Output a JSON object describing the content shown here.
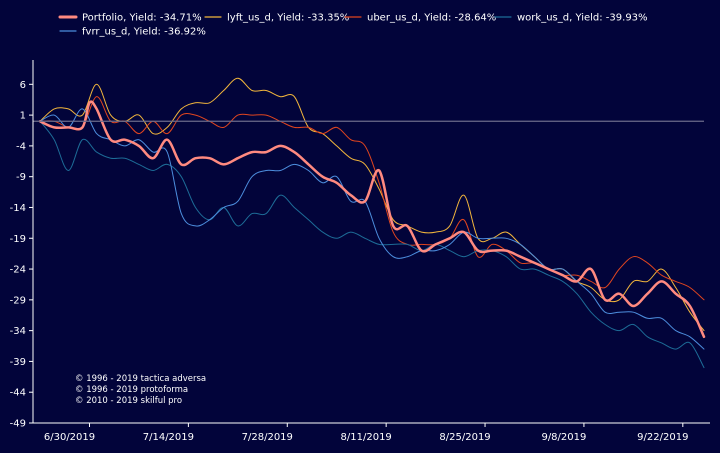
{
  "chart_data": {
    "type": "line",
    "title": "",
    "xlabel": "",
    "ylabel": "",
    "ylim": [
      -49,
      8
    ],
    "y_ticks": [
      6,
      1,
      -4,
      -9,
      -14,
      -19,
      -24,
      -29,
      -34,
      -39,
      -44,
      -49
    ],
    "x_ticks": [
      "6/30/2019",
      "7/14/2019",
      "7/28/2019",
      "8/11/2019",
      "8/25/2019",
      "9/8/2019",
      "9/22/2019"
    ],
    "x_tick_index": [
      7,
      21,
      35,
      49,
      63,
      77,
      91
    ],
    "x_range_index": [
      -1,
      94
    ],
    "baseline": 0,
    "grid": false,
    "legend_position": "top-left",
    "colors": {
      "background": "#02043a",
      "axis": "#ffffff",
      "baseline": "#6b6b8a"
    },
    "series": [
      {
        "name": "lyft_us_d",
        "legend": "lyft_us_d, Yield: -33.35%",
        "color": "#f2b63c",
        "width": 1,
        "points": [
          [
            0,
            0
          ],
          [
            2,
            2
          ],
          [
            4,
            2
          ],
          [
            6,
            1
          ],
          [
            8,
            6
          ],
          [
            10,
            1
          ],
          [
            12,
            0
          ],
          [
            14,
            1
          ],
          [
            16,
            -2
          ],
          [
            18,
            -1
          ],
          [
            20,
            2
          ],
          [
            22,
            3
          ],
          [
            24,
            3
          ],
          [
            26,
            5
          ],
          [
            28,
            7
          ],
          [
            30,
            5
          ],
          [
            32,
            5
          ],
          [
            34,
            4
          ],
          [
            36,
            4
          ],
          [
            38,
            -1
          ],
          [
            40,
            -2
          ],
          [
            42,
            -4
          ],
          [
            44,
            -6
          ],
          [
            46,
            -7
          ],
          [
            48,
            -11
          ],
          [
            50,
            -16
          ],
          [
            52,
            -17
          ],
          [
            54,
            -18
          ],
          [
            56,
            -18
          ],
          [
            58,
            -17
          ],
          [
            60,
            -12
          ],
          [
            62,
            -19
          ],
          [
            64,
            -19
          ],
          [
            66,
            -18
          ],
          [
            68,
            -20
          ],
          [
            70,
            -22
          ],
          [
            72,
            -24
          ],
          [
            74,
            -24
          ],
          [
            76,
            -26
          ],
          [
            78,
            -27
          ],
          [
            80,
            -29
          ],
          [
            82,
            -29
          ],
          [
            84,
            -26
          ],
          [
            86,
            -26
          ],
          [
            88,
            -24
          ],
          [
            90,
            -27
          ],
          [
            92,
            -31
          ],
          [
            94,
            -34
          ]
        ]
      },
      {
        "name": "uber_us_d",
        "legend": "uber_us_d, Yield: -28.64%",
        "color": "#e0451f",
        "width": 1,
        "points": [
          [
            0,
            0
          ],
          [
            2,
            0
          ],
          [
            4,
            -1
          ],
          [
            6,
            -1
          ],
          [
            8,
            4
          ],
          [
            10,
            0
          ],
          [
            12,
            0
          ],
          [
            14,
            -2
          ],
          [
            16,
            0
          ],
          [
            18,
            -2
          ],
          [
            20,
            1
          ],
          [
            22,
            1
          ],
          [
            24,
            0
          ],
          [
            26,
            -1
          ],
          [
            28,
            1
          ],
          [
            30,
            1
          ],
          [
            32,
            1
          ],
          [
            34,
            0
          ],
          [
            36,
            -1
          ],
          [
            38,
            -1
          ],
          [
            40,
            -2
          ],
          [
            42,
            -1
          ],
          [
            44,
            -3
          ],
          [
            46,
            -4
          ],
          [
            48,
            -10
          ],
          [
            50,
            -18
          ],
          [
            52,
            -20
          ],
          [
            54,
            -20
          ],
          [
            56,
            -20
          ],
          [
            58,
            -19
          ],
          [
            60,
            -16
          ],
          [
            62,
            -22
          ],
          [
            64,
            -20
          ],
          [
            66,
            -21
          ],
          [
            68,
            -23
          ],
          [
            70,
            -23
          ],
          [
            72,
            -24
          ],
          [
            74,
            -25
          ],
          [
            76,
            -25
          ],
          [
            78,
            -26
          ],
          [
            80,
            -27
          ],
          [
            82,
            -24
          ],
          [
            84,
            -22
          ],
          [
            86,
            -23
          ],
          [
            88,
            -25
          ],
          [
            90,
            -26
          ],
          [
            92,
            -27
          ],
          [
            94,
            -29
          ]
        ]
      },
      {
        "name": "work_us_d",
        "legend": "work_us_d, Yield: -39.93%",
        "color": "#1d6c97",
        "width": 1,
        "points": [
          [
            0,
            0
          ],
          [
            2,
            -3
          ],
          [
            4,
            -8
          ],
          [
            6,
            -3
          ],
          [
            8,
            -5
          ],
          [
            10,
            -6
          ],
          [
            12,
            -6
          ],
          [
            14,
            -7
          ],
          [
            16,
            -8
          ],
          [
            18,
            -7
          ],
          [
            20,
            -9
          ],
          [
            22,
            -14
          ],
          [
            24,
            -16
          ],
          [
            26,
            -14
          ],
          [
            28,
            -17
          ],
          [
            30,
            -15
          ],
          [
            32,
            -15
          ],
          [
            34,
            -12
          ],
          [
            36,
            -14
          ],
          [
            38,
            -16
          ],
          [
            40,
            -18
          ],
          [
            42,
            -19
          ],
          [
            44,
            -18
          ],
          [
            46,
            -19
          ],
          [
            48,
            -20
          ],
          [
            50,
            -20
          ],
          [
            52,
            -20
          ],
          [
            54,
            -21
          ],
          [
            56,
            -20
          ],
          [
            58,
            -21
          ],
          [
            60,
            -22
          ],
          [
            62,
            -21
          ],
          [
            64,
            -21
          ],
          [
            66,
            -22
          ],
          [
            68,
            -24
          ],
          [
            70,
            -24
          ],
          [
            72,
            -25
          ],
          [
            74,
            -26
          ],
          [
            76,
            -28
          ],
          [
            78,
            -31
          ],
          [
            80,
            -33
          ],
          [
            82,
            -34
          ],
          [
            84,
            -33
          ],
          [
            86,
            -35
          ],
          [
            88,
            -36
          ],
          [
            90,
            -37
          ],
          [
            92,
            -36
          ],
          [
            94,
            -40
          ]
        ]
      },
      {
        "name": "fvrr_us_d",
        "legend": "fvrr_us_d, Yield: -36.92%",
        "color": "#4d8ede",
        "width": 1,
        "points": [
          [
            0,
            0
          ],
          [
            2,
            1
          ],
          [
            4,
            -1
          ],
          [
            6,
            2
          ],
          [
            8,
            -2
          ],
          [
            10,
            -3
          ],
          [
            12,
            -4
          ],
          [
            14,
            -3
          ],
          [
            16,
            -5
          ],
          [
            18,
            -5
          ],
          [
            20,
            -15
          ],
          [
            22,
            -17
          ],
          [
            24,
            -16
          ],
          [
            26,
            -14
          ],
          [
            28,
            -13
          ],
          [
            30,
            -9
          ],
          [
            32,
            -8
          ],
          [
            34,
            -8
          ],
          [
            36,
            -7
          ],
          [
            38,
            -8
          ],
          [
            40,
            -10
          ],
          [
            42,
            -9
          ],
          [
            44,
            -13
          ],
          [
            46,
            -13
          ],
          [
            48,
            -19
          ],
          [
            50,
            -22
          ],
          [
            52,
            -22
          ],
          [
            54,
            -21
          ],
          [
            56,
            -21
          ],
          [
            58,
            -20
          ],
          [
            60,
            -18
          ],
          [
            62,
            -19
          ],
          [
            64,
            -19
          ],
          [
            66,
            -19
          ],
          [
            68,
            -20
          ],
          [
            70,
            -22
          ],
          [
            72,
            -24
          ],
          [
            74,
            -24
          ],
          [
            76,
            -26
          ],
          [
            78,
            -28
          ],
          [
            80,
            -31
          ],
          [
            82,
            -31
          ],
          [
            84,
            -31
          ],
          [
            86,
            -32
          ],
          [
            88,
            -32
          ],
          [
            90,
            -34
          ],
          [
            92,
            -35
          ],
          [
            94,
            -37
          ]
        ]
      },
      {
        "name": "Portfolio",
        "legend": "Portfolio, Yield: -34.71%",
        "color": "#ff8a80",
        "width": 2.5,
        "points": [
          [
            0,
            0
          ],
          [
            2,
            -1
          ],
          [
            4,
            -1
          ],
          [
            6,
            -1
          ],
          [
            7,
            3
          ],
          [
            8,
            2
          ],
          [
            10,
            -3
          ],
          [
            12,
            -3
          ],
          [
            14,
            -4
          ],
          [
            16,
            -6
          ],
          [
            18,
            -3
          ],
          [
            20,
            -7
          ],
          [
            22,
            -6
          ],
          [
            24,
            -6
          ],
          [
            26,
            -7
          ],
          [
            28,
            -6
          ],
          [
            30,
            -5
          ],
          [
            32,
            -5
          ],
          [
            34,
            -4
          ],
          [
            36,
            -5
          ],
          [
            38,
            -7
          ],
          [
            40,
            -9
          ],
          [
            42,
            -10
          ],
          [
            44,
            -12
          ],
          [
            46,
            -13
          ],
          [
            48,
            -8
          ],
          [
            50,
            -17
          ],
          [
            52,
            -17
          ],
          [
            54,
            -21
          ],
          [
            56,
            -20
          ],
          [
            58,
            -19
          ],
          [
            60,
            -18
          ],
          [
            62,
            -21
          ],
          [
            64,
            -21
          ],
          [
            66,
            -21
          ],
          [
            68,
            -22
          ],
          [
            70,
            -23
          ],
          [
            72,
            -24
          ],
          [
            74,
            -25
          ],
          [
            76,
            -26
          ],
          [
            78,
            -24
          ],
          [
            80,
            -29
          ],
          [
            82,
            -28
          ],
          [
            84,
            -30
          ],
          [
            86,
            -28
          ],
          [
            88,
            -26
          ],
          [
            90,
            -28
          ],
          [
            92,
            -30
          ],
          [
            94,
            -35
          ]
        ]
      }
    ],
    "copyright": [
      "© 1996 - 2019 tactica adversa",
      "© 1996 - 2019 protoforma",
      "© 2010 - 2019 skilful pro"
    ]
  }
}
